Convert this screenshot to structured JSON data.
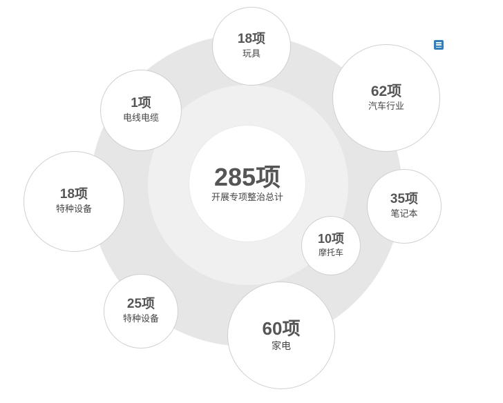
{
  "center": {
    "value": "285项",
    "label": "开展专项整治总计"
  },
  "items": [
    {
      "value": "18项",
      "label": "玩具"
    },
    {
      "value": "62项",
      "label": "汽车行业"
    },
    {
      "value": "1项",
      "label": "电线电缆"
    },
    {
      "value": "18项",
      "label": "特种设备"
    },
    {
      "value": "35项",
      "label": "笔记本"
    },
    {
      "value": "10项",
      "label": "摩托车"
    },
    {
      "value": "25项",
      "label": "特种设备"
    },
    {
      "value": "60项",
      "label": "家电"
    }
  ],
  "menu_icon": "menu-icon",
  "colors": {
    "outer_ring": "#e6e6e6",
    "inner_ring": "#f0f0f0",
    "text": "#555555",
    "menu_icon": "#2a7fc9"
  }
}
